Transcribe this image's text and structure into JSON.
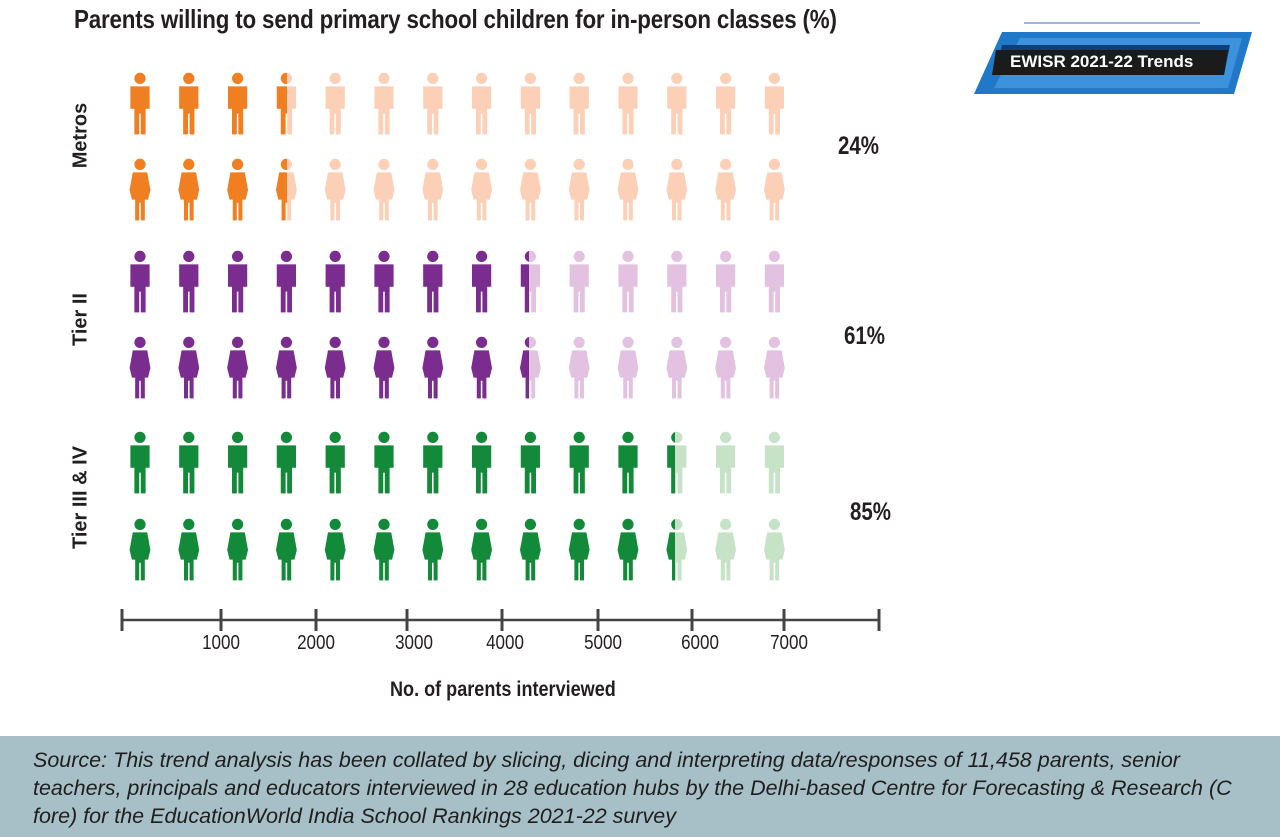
{
  "title": "Parents willing to send primary school children for in-person classes (%)",
  "badge": {
    "label": "EWISR 2021-22 Trends"
  },
  "chart_data": {
    "type": "pictogram",
    "xlabel": "No. of parents interviewed",
    "x_ticks": [
      "1000",
      "2000",
      "3000",
      "4000",
      "5000",
      "6000",
      "7000"
    ],
    "icons_per_row": 14,
    "series": [
      {
        "name": "Metros",
        "value_label": "24%",
        "value": 24,
        "color": "#f07f22",
        "faded_color": "#fbd0b6"
      },
      {
        "name": "Tier II",
        "value_label": "61%",
        "value": 61,
        "color": "#7b2c8f",
        "faded_color": "#e3c2e1"
      },
      {
        "name": "Tier III & IV",
        "value_label": "85%",
        "value": 85,
        "color": "#138a3a",
        "faded_color": "#c6e3c7"
      }
    ]
  },
  "source": "Source: This trend analysis has been collated by slicing, dicing and interpreting data/responses of 11,458 parents, senior teachers, principals and educators interviewed in 28 education hubs by the Delhi-based Centre for Forecasting & Research (C fore) for the EducationWorld India School Rankings 2021-22 survey"
}
